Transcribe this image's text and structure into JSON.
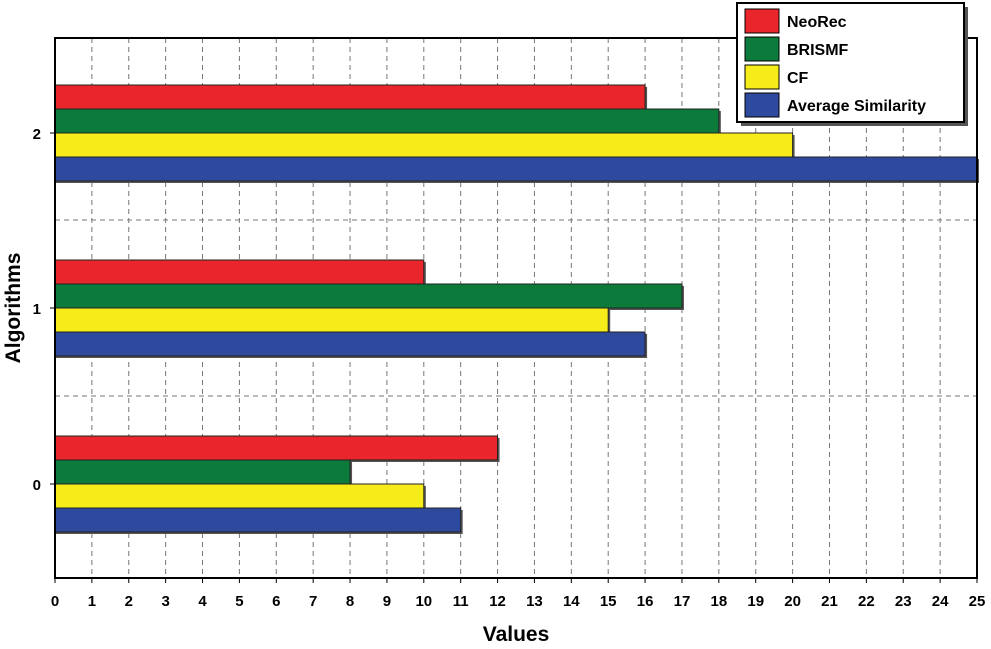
{
  "chart_data": {
    "type": "bar",
    "orientation": "horizontal",
    "categories": [
      "0",
      "1",
      "2"
    ],
    "series": [
      {
        "name": "NeoRec",
        "color": "#e8262b",
        "values": [
          12,
          10,
          16
        ]
      },
      {
        "name": "BRISMF",
        "color": "#0b7a3b",
        "values": [
          8,
          17,
          18
        ]
      },
      {
        "name": "CF",
        "color": "#f5ec1a",
        "values": [
          10,
          15,
          20
        ]
      },
      {
        "name": "Average Similarity",
        "color": "#2e4a9e",
        "values": [
          11,
          16,
          25
        ]
      }
    ],
    "xlabel": "Values",
    "ylabel": "Algorithms",
    "xlim": [
      0,
      25
    ],
    "xticks": [
      "0",
      "1",
      "2",
      "3",
      "4",
      "5",
      "6",
      "7",
      "8",
      "9",
      "10",
      "11",
      "12",
      "13",
      "14",
      "15",
      "16",
      "17",
      "18",
      "19",
      "20",
      "21",
      "22",
      "23",
      "24",
      "25"
    ],
    "grid": true,
    "legend_position": "top-right"
  }
}
